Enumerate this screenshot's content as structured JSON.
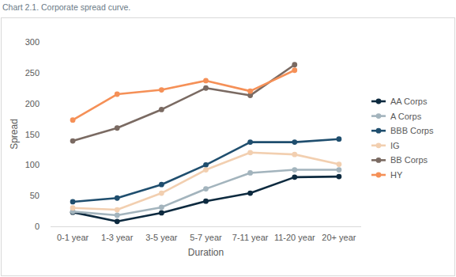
{
  "chart_data": {
    "type": "line",
    "title": "Chart 2.1. Corporate spread curve.",
    "x_label": "Duration",
    "y_label": "Spread",
    "categories": [
      "0-1 year",
      "1-3 year",
      "3-5 year",
      "5-7 year",
      "7-11 year",
      "11-20 year",
      "20+ year"
    ],
    "series": [
      {
        "name": "AA Corps",
        "color": "#0d2a3f",
        "values": [
          23,
          8,
          22,
          41,
          54,
          80,
          81
        ]
      },
      {
        "name": "A Corps",
        "color": "#a3b4bd",
        "values": [
          24,
          18,
          31,
          61,
          87,
          92,
          92
        ]
      },
      {
        "name": "BBB Corps",
        "color": "#1f4e6e",
        "values": [
          40,
          46,
          68,
          100,
          137,
          137,
          142
        ]
      },
      {
        "name": "IG",
        "color": "#f2cfb0",
        "values": [
          30,
          27,
          54,
          92,
          120,
          117,
          101
        ]
      },
      {
        "name": "BB Corps",
        "color": "#7a6a62",
        "values": [
          139,
          160,
          190,
          225,
          213,
          263,
          null
        ]
      },
      {
        "name": "HY",
        "color": "#f59057",
        "values": [
          173,
          215,
          222,
          237,
          220,
          254,
          null
        ]
      }
    ],
    "ylim": [
      0,
      300
    ],
    "yticks": [
      0,
      50,
      100,
      150,
      200,
      250,
      300
    ],
    "grid": false,
    "legend": "right",
    "marker": "circle"
  }
}
